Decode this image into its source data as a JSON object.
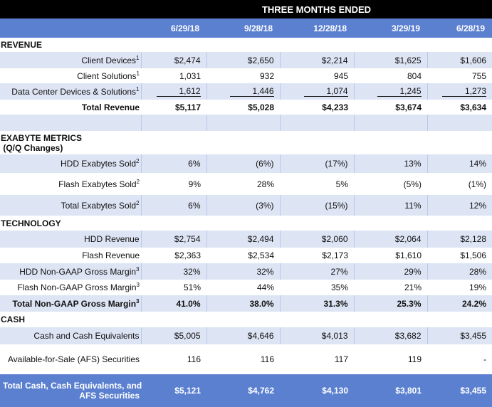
{
  "header": {
    "group_title": "THREE MONTHS ENDED",
    "periods": [
      "6/29/18",
      "9/28/18",
      "12/28/18",
      "3/29/19",
      "6/28/19"
    ]
  },
  "colors": {
    "header_blue": "#5b80d0",
    "row_shade": "#dde4f4",
    "top_bar": "#000000"
  },
  "rows": [
    {
      "type": "section",
      "label": "REVENUE"
    },
    {
      "type": "data",
      "label": "Client Devices",
      "sup": "1",
      "values": [
        "$2,474",
        "$2,650",
        "$2,214",
        "$1,625",
        "$1,606"
      ],
      "shade": true
    },
    {
      "type": "data",
      "label": "Client Solutions",
      "sup": "1",
      "values": [
        "1,031",
        "932",
        "945",
        "804",
        "755"
      ]
    },
    {
      "type": "data",
      "label": "Data Center Devices & Solutions",
      "sup": "1",
      "values": [
        "1,612",
        "1,446",
        "1,074",
        "1,245",
        "1,273"
      ],
      "shade": true,
      "underline": true
    },
    {
      "type": "data",
      "label": "Total Revenue",
      "values": [
        "$5,117",
        "$5,028",
        "$4,233",
        "$3,674",
        "$3,634"
      ],
      "bold": true
    },
    {
      "type": "blank",
      "shade": true
    },
    {
      "type": "section",
      "label": "EXABYTE METRICS",
      "label2": " (Q/Q Changes)"
    },
    {
      "type": "data",
      "label": "HDD Exabytes Sold",
      "sup": "2",
      "values": [
        "6%",
        "(6%)",
        "(17%)",
        "13%",
        "14%"
      ],
      "shade": true
    },
    {
      "type": "data",
      "label": "Flash Exabytes Sold",
      "sup": "2",
      "values": [
        "9%",
        "28%",
        "5%",
        "(5%)",
        "(1%)"
      ]
    },
    {
      "type": "data",
      "label": "Total Exabytes Sold",
      "sup": "2",
      "values": [
        "6%",
        "(3%)",
        "(15%)",
        "11%",
        "12%"
      ],
      "shade": true
    },
    {
      "type": "section",
      "label": "TECHNOLOGY"
    },
    {
      "type": "data",
      "label": "HDD Revenue",
      "values": [
        "$2,754",
        "$2,494",
        "$2,060",
        "$2,064",
        "$2,128"
      ],
      "shade": true
    },
    {
      "type": "data",
      "label": "Flash Revenue",
      "values": [
        "$2,363",
        "$2,534",
        "$2,173",
        "$1,610",
        "$1,506"
      ]
    },
    {
      "type": "data",
      "label": "HDD Non-GAAP Gross Margin",
      "sup": "3",
      "values": [
        "32%",
        "32%",
        "27%",
        "29%",
        "28%"
      ],
      "shade": true
    },
    {
      "type": "data",
      "label": "Flash Non-GAAP Gross Margin",
      "sup": "3",
      "values": [
        "51%",
        "44%",
        "35%",
        "21%",
        "19%"
      ]
    },
    {
      "type": "data",
      "label": "Total Non-GAAP Gross Margin",
      "sup": "3",
      "values": [
        "41.0%",
        "38.0%",
        "31.3%",
        "25.3%",
        "24.2%"
      ],
      "shade": true,
      "bold": true
    },
    {
      "type": "section",
      "label": "CASH"
    },
    {
      "type": "data",
      "label": "Cash and Cash Equivalents",
      "values": [
        "$5,005",
        "$4,646",
        "$4,013",
        "$3,682",
        "$3,455"
      ],
      "shade": true
    },
    {
      "type": "data",
      "label": "Available-for-Sale (AFS) Securities",
      "values": [
        "116",
        "116",
        "117",
        "119",
        "-"
      ]
    },
    {
      "type": "total",
      "label": "Total Cash, Cash Equivalents, and",
      "label2": "AFS Securities",
      "values": [
        "$5,121",
        "$4,762",
        "$4,130",
        "$3,801",
        "$3,455"
      ]
    }
  ]
}
